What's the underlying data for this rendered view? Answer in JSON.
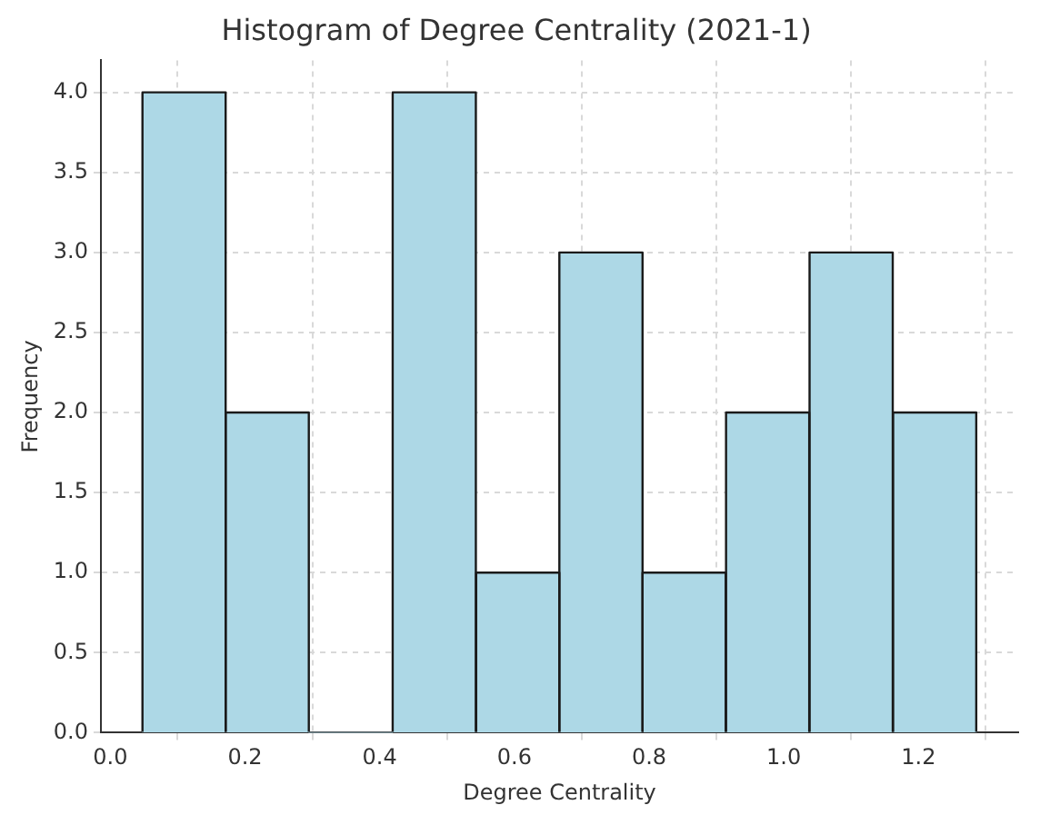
{
  "chart_data": {
    "type": "histogram",
    "title": "Histogram of Degree Centrality (2021-1)",
    "xlabel": "Degree Centrality",
    "ylabel": "Frequency",
    "bins": [
      0.048,
      0.171,
      0.295,
      0.419,
      0.543,
      0.667,
      0.79,
      0.914,
      1.038,
      1.162,
      1.286
    ],
    "values": [
      4,
      2,
      0,
      4,
      1,
      3,
      1,
      2,
      3,
      2
    ],
    "color": "#add8e6",
    "xlim": [
      -0.014,
      1.348
    ],
    "ylim": [
      0,
      4.2
    ],
    "xticks": [
      {
        "value": 0,
        "label": "0.0"
      },
      {
        "value": 0.2,
        "label": "0.2"
      },
      {
        "value": 0.4,
        "label": "0.4"
      },
      {
        "value": 0.6,
        "label": "0.6"
      },
      {
        "value": 0.8,
        "label": "0.8"
      },
      {
        "value": 1,
        "label": "1.0"
      },
      {
        "value": 1.2,
        "label": "1.2"
      }
    ],
    "yticks": [
      {
        "value": 0,
        "label": "0.0"
      },
      {
        "value": 0.5,
        "label": "0.5"
      },
      {
        "value": 1,
        "label": "1.0"
      },
      {
        "value": 1.5,
        "label": "1.5"
      },
      {
        "value": 2,
        "label": "2.0"
      },
      {
        "value": 2.5,
        "label": "2.5"
      },
      {
        "value": 3,
        "label": "3.0"
      },
      {
        "value": 3.5,
        "label": "3.5"
      },
      {
        "value": 4,
        "label": "4.0"
      }
    ],
    "grid": true
  }
}
